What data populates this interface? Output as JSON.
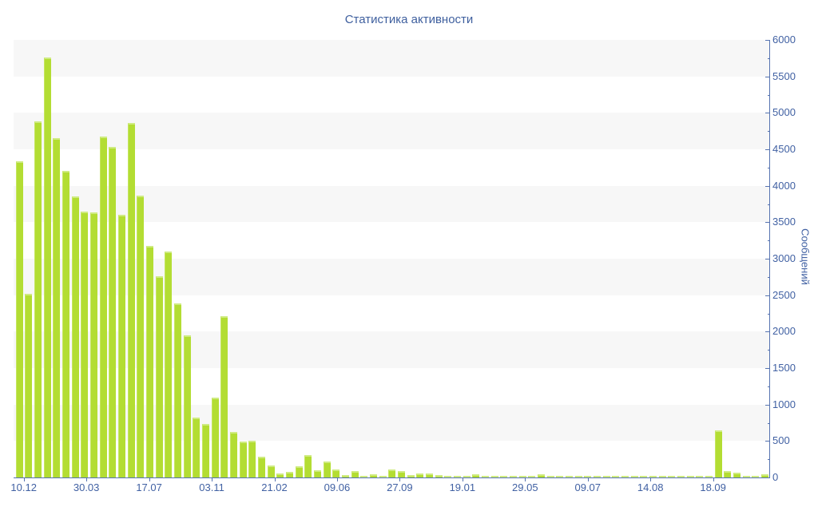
{
  "title": "Статистика активности",
  "chart_data": {
    "type": "bar",
    "title": "Статистика активности",
    "xlabel": "",
    "ylabel": "Сообщений",
    "ylim": [
      0,
      6000
    ],
    "grid": "horizontal-stripes-every-500",
    "legend": "none",
    "y_tick_labels": [
      "0",
      "500",
      "1000",
      "1500",
      "2000",
      "2500",
      "3000",
      "3500",
      "4000",
      "4500",
      "5000",
      "5500",
      "6000"
    ],
    "y_minor_tick_step": 250,
    "x_tick_labels": [
      "10.12",
      "30.03",
      "17.07",
      "03.11",
      "21.02",
      "09.06",
      "27.09",
      "19.01",
      "29.05",
      "09.07",
      "14.08",
      "18.09"
    ],
    "values": [
      4340,
      2520,
      4880,
      5760,
      4650,
      4200,
      3850,
      3650,
      3630,
      4670,
      4530,
      3600,
      4860,
      3870,
      3180,
      2760,
      3100,
      2390,
      1950,
      820,
      730,
      1100,
      2210,
      620,
      490,
      500,
      290,
      160,
      60,
      75,
      150,
      310,
      95,
      215,
      115,
      35,
      85,
      20,
      45,
      25,
      110,
      90,
      35,
      50,
      50,
      30,
      20,
      25,
      20,
      40,
      25,
      20,
      20,
      20,
      15,
      15,
      40,
      15,
      12,
      12,
      15,
      10,
      12,
      10,
      12,
      15,
      10,
      12,
      10,
      15,
      12,
      15,
      12,
      15,
      12,
      650,
      90,
      65,
      10,
      8,
      45
    ],
    "colors": {
      "bar": "#b3dd33",
      "bar_highlight": "#cfeb82",
      "axis_line": "#5673b0",
      "tick_label": "#4161a3",
      "title": "#3e5f9e",
      "stripe": "#f7f7f7",
      "background": "#ffffff"
    }
  }
}
